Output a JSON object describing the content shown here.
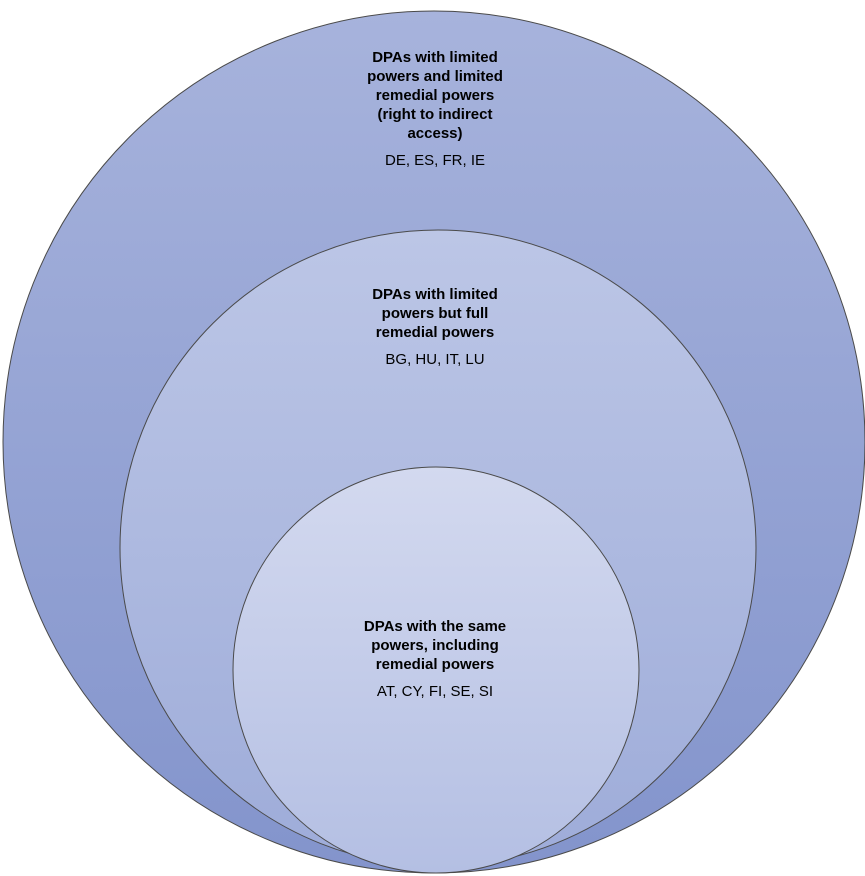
{
  "colors": {
    "outer_top": "#a7b3dc",
    "outer_bottom": "#8394cc",
    "middle_top": "#bcc6e6",
    "middle_bottom": "#9eacd9",
    "inner_top": "#d3d9ef",
    "inner_bottom": "#b4bfe3",
    "stroke": "#4a4a4a"
  },
  "circles": [
    {
      "heading": "DPAs with limited powers and limited remedial powers (right to indirect access)",
      "heading_lines": [
        "DPAs with limited",
        "powers and limited",
        "remedial powers",
        "(right to indirect",
        "access)"
      ],
      "members": "DE, ES, FR, IE"
    },
    {
      "heading": "DPAs with limited powers but full remedial powers",
      "heading_lines": [
        "DPAs with limited",
        "powers but full",
        "remedial powers"
      ],
      "members": "BG, HU, IT, LU"
    },
    {
      "heading": "DPAs with the same powers, including remedial powers",
      "heading_lines": [
        "DPAs with the same",
        "powers, including",
        "remedial powers"
      ],
      "members": "AT, CY, FI, SE, SI"
    }
  ]
}
